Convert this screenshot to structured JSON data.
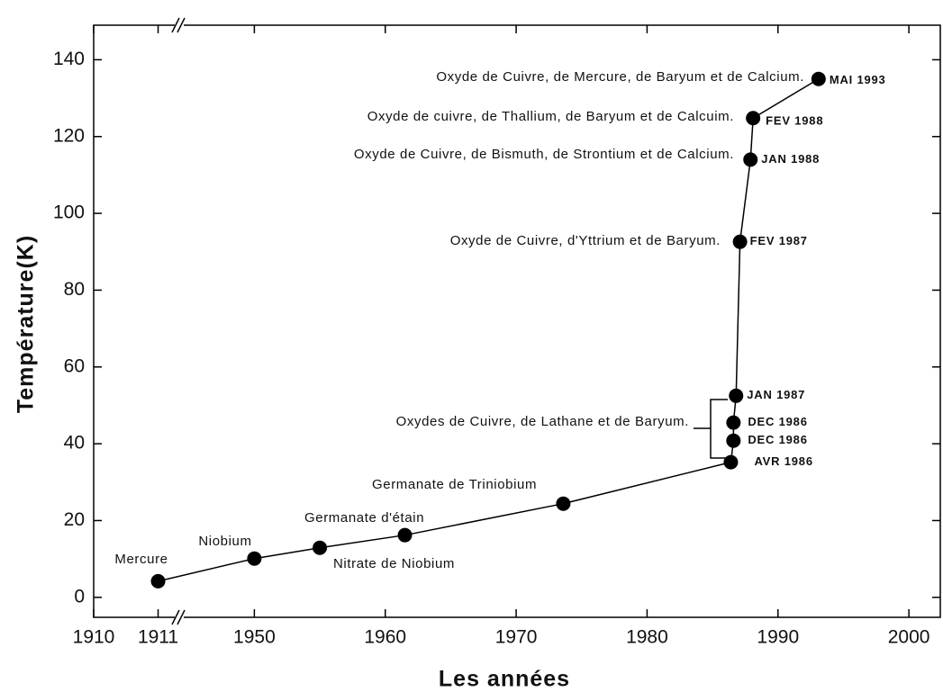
{
  "chart_data": {
    "type": "line",
    "xlabel": "Les années",
    "ylabel": "Température(K)",
    "x": [
      1911,
      1950,
      1955,
      1961.5,
      1973.6,
      1986.4,
      1986.6,
      1986.6,
      1986.8,
      1987.1,
      1987.9,
      1988.1,
      1993.1
    ],
    "series": [
      {
        "color": "#000000",
        "values": [
          4.2,
          10.1,
          12.9,
          16.2,
          24.4,
          35.2,
          40.8,
          45.5,
          52.5,
          92.6,
          114,
          124.8,
          135
        ]
      }
    ],
    "date_labels": [
      null,
      null,
      null,
      null,
      null,
      "AVR 1986",
      "DEC 1986",
      "DEC 1986",
      "JAN 1987",
      "FEV 1987",
      "JAN 1988",
      "FEV 1988",
      "MAI 1993"
    ],
    "annotations": [
      "Mercure",
      "Niobium",
      "Nitrate de Niobium",
      "Germanate d'étain",
      "Germanate de Triniobium",
      "Oxydes de Cuivre, de Lathane et de Baryum.",
      "Oxyde de Cuivre, d'Yttrium et de Baryum.",
      "Oxyde de Cuivre, de Bismuth, de Strontium et de Calcium.",
      "Oxyde de cuivre, de Thallium, de Baryum et de Calcuim.",
      "Oxyde de Cuivre, de Mercure, de Baryum et de Calcium."
    ],
    "xlim": [
      1910,
      2002.4
    ],
    "xbreak": [
      1911.3,
      1944.4
    ],
    "xticks": [
      1910,
      1911,
      1950,
      1960,
      1970,
      1980,
      1990,
      2000
    ],
    "ylim": [
      -5.2,
      149
    ],
    "yticks": [
      0,
      20,
      40,
      60,
      80,
      100,
      120,
      140
    ]
  }
}
